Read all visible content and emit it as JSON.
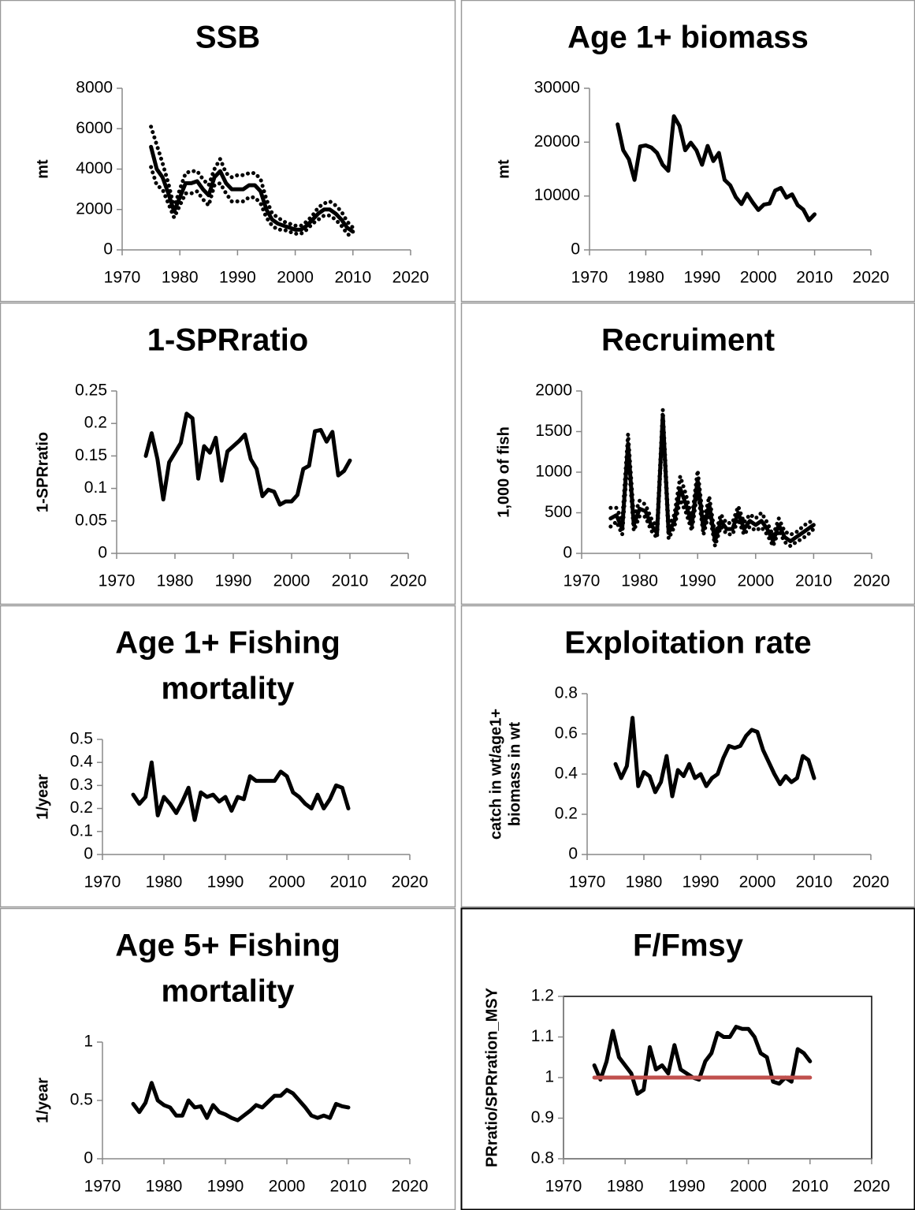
{
  "chart_data": [
    {
      "type": "line",
      "title": "SSB",
      "ylabel": "mt",
      "x": [
        1975,
        1976,
        1977,
        1978,
        1979,
        1980,
        1981,
        1982,
        1983,
        1984,
        1985,
        1986,
        1987,
        1988,
        1989,
        1990,
        1991,
        1992,
        1993,
        1994,
        1995,
        1996,
        1997,
        1998,
        1999,
        2000,
        2001,
        2002,
        2003,
        2004,
        2005,
        2006,
        2007,
        2008,
        2009,
        2010
      ],
      "series": [
        {
          "color": "#000000",
          "values": [
            5100,
            4000,
            3600,
            2800,
            1900,
            2600,
            3300,
            3300,
            3400,
            3000,
            2700,
            3600,
            3900,
            3300,
            3000,
            3000,
            3000,
            3200,
            3200,
            2900,
            2000,
            1500,
            1300,
            1200,
            1100,
            1000,
            1000,
            1200,
            1500,
            1800,
            2000,
            2000,
            1800,
            1500,
            1100,
            900
          ]
        },
        {
          "color": "#000000",
          "dash": "dotted",
          "values": [
            6100,
            5200,
            4300,
            3300,
            2100,
            3000,
            3800,
            3900,
            3900,
            3500,
            3200,
            4000,
            4500,
            3800,
            3600,
            3700,
            3700,
            3800,
            3800,
            3500,
            2500,
            1800,
            1600,
            1400,
            1300,
            1200,
            1200,
            1400,
            1700,
            2100,
            2300,
            2400,
            2200,
            1900,
            1400,
            1100
          ]
        },
        {
          "color": "#000000",
          "dash": "dotted",
          "values": [
            4100,
            3200,
            3000,
            2300,
            1600,
            2200,
            2800,
            2800,
            2900,
            2500,
            2200,
            3200,
            3300,
            2800,
            2400,
            2400,
            2400,
            2600,
            2600,
            2300,
            1600,
            1200,
            1000,
            1000,
            900,
            800,
            800,
            1000,
            1300,
            1500,
            1700,
            1700,
            1500,
            1200,
            800,
            600
          ]
        }
      ],
      "xlim": [
        1970,
        2020
      ],
      "xticks": [
        1970,
        1980,
        1990,
        2000,
        2010,
        2020
      ],
      "ylim": [
        0,
        8000
      ],
      "yticks": [
        0,
        2000,
        4000,
        6000,
        8000
      ]
    },
    {
      "type": "line",
      "title": "Age 1+ biomass",
      "ylabel": "mt",
      "x": [
        1975,
        1976,
        1977,
        1978,
        1979,
        1980,
        1981,
        1982,
        1983,
        1984,
        1985,
        1986,
        1987,
        1988,
        1989,
        1990,
        1991,
        1992,
        1993,
        1994,
        1995,
        1996,
        1997,
        1998,
        1999,
        2000,
        2001,
        2002,
        2003,
        2004,
        2005,
        2006,
        2007,
        2008,
        2009,
        2010
      ],
      "series": [
        {
          "color": "#000000",
          "values": [
            23300,
            18500,
            16800,
            13000,
            19200,
            19400,
            19000,
            18000,
            15800,
            14700,
            24800,
            23000,
            18500,
            19900,
            18500,
            15800,
            19300,
            16500,
            18000,
            13000,
            12000,
            9800,
            8500,
            10400,
            8800,
            7400,
            8400,
            8600,
            11000,
            11500,
            9700,
            10300,
            8300,
            7500,
            5500,
            6600
          ]
        }
      ],
      "xlim": [
        1970,
        2020
      ],
      "xticks": [
        1970,
        1980,
        1990,
        2000,
        2010,
        2020
      ],
      "ylim": [
        0,
        30000
      ],
      "yticks": [
        0,
        10000,
        20000,
        30000
      ]
    },
    {
      "type": "line",
      "title": "1-SPRratio",
      "ylabel": "1-SPRratio",
      "x": [
        1975,
        1976,
        1977,
        1978,
        1979,
        1980,
        1981,
        1982,
        1983,
        1984,
        1985,
        1986,
        1987,
        1988,
        1989,
        1990,
        1991,
        1992,
        1993,
        1994,
        1995,
        1996,
        1997,
        1998,
        1999,
        2000,
        2001,
        2002,
        2003,
        2004,
        2005,
        2006,
        2007,
        2008,
        2009,
        2010
      ],
      "series": [
        {
          "color": "#000000",
          "values": [
            0.15,
            0.185,
            0.145,
            0.083,
            0.14,
            0.155,
            0.17,
            0.215,
            0.208,
            0.115,
            0.165,
            0.155,
            0.178,
            0.112,
            0.157,
            0.165,
            0.173,
            0.183,
            0.145,
            0.13,
            0.088,
            0.098,
            0.095,
            0.075,
            0.08,
            0.08,
            0.09,
            0.13,
            0.135,
            0.188,
            0.19,
            0.172,
            0.187,
            0.12,
            0.127,
            0.143
          ]
        }
      ],
      "xlim": [
        1970,
        2020
      ],
      "xticks": [
        1970,
        1980,
        1990,
        2000,
        2010,
        2020
      ],
      "ylim": [
        0,
        0.25
      ],
      "yticks": [
        0,
        0.05,
        0.1,
        0.15,
        0.2,
        0.25
      ]
    },
    {
      "type": "line",
      "title": "Recruiment",
      "ylabel": "1,000 of fish",
      "x": [
        1975,
        1976,
        1977,
        1978,
        1979,
        1980,
        1981,
        1982,
        1983,
        1984,
        1985,
        1986,
        1987,
        1988,
        1989,
        1990,
        1991,
        1992,
        1993,
        1994,
        1995,
        1996,
        1997,
        1998,
        1999,
        2000,
        2001,
        2002,
        2003,
        2004,
        2005,
        2006,
        2007,
        2008,
        2009,
        2010
      ],
      "series": [
        {
          "color": "#000000",
          "values": [
            430,
            470,
            300,
            1350,
            350,
            550,
            520,
            350,
            250,
            1700,
            250,
            400,
            800,
            600,
            350,
            900,
            300,
            600,
            150,
            400,
            300,
            300,
            500,
            300,
            400,
            350,
            400,
            300,
            150,
            350,
            200,
            150,
            200,
            250,
            300,
            350
          ]
        },
        {
          "color": "#000000",
          "dash": "dotted",
          "values": [
            560,
            560,
            400,
            1470,
            450,
            650,
            600,
            430,
            320,
            1770,
            330,
            480,
            950,
            720,
            430,
            1020,
            380,
            700,
            220,
            480,
            370,
            380,
            580,
            380,
            480,
            430,
            500,
            380,
            220,
            430,
            270,
            230,
            260,
            320,
            380,
            400
          ]
        },
        {
          "color": "#000000",
          "dash": "dotted",
          "values": [
            330,
            390,
            230,
            1230,
            280,
            460,
            450,
            280,
            190,
            1620,
            180,
            330,
            660,
            500,
            280,
            780,
            230,
            510,
            90,
            330,
            240,
            230,
            420,
            230,
            330,
            280,
            320,
            230,
            90,
            280,
            140,
            90,
            140,
            180,
            230,
            300
          ]
        }
      ],
      "xlim": [
        1970,
        2020
      ],
      "xticks": [
        1970,
        1980,
        1990,
        2000,
        2010,
        2020
      ],
      "ylim": [
        0,
        2000
      ],
      "yticks": [
        0,
        500,
        1000,
        1500,
        2000
      ]
    },
    {
      "type": "line",
      "title": [
        "Age 1+ Fishing",
        "mortality"
      ],
      "ylabel": "1/year",
      "x": [
        1975,
        1976,
        1977,
        1978,
        1979,
        1980,
        1981,
        1982,
        1983,
        1984,
        1985,
        1986,
        1987,
        1988,
        1989,
        1990,
        1991,
        1992,
        1993,
        1994,
        1995,
        1996,
        1997,
        1998,
        1999,
        2000,
        2001,
        2002,
        2003,
        2004,
        2005,
        2006,
        2007,
        2008,
        2009,
        2010
      ],
      "series": [
        {
          "color": "#000000",
          "values": [
            0.26,
            0.22,
            0.25,
            0.4,
            0.17,
            0.25,
            0.22,
            0.18,
            0.23,
            0.29,
            0.15,
            0.27,
            0.25,
            0.26,
            0.23,
            0.25,
            0.19,
            0.25,
            0.24,
            0.34,
            0.32,
            0.32,
            0.32,
            0.32,
            0.36,
            0.34,
            0.27,
            0.25,
            0.22,
            0.2,
            0.26,
            0.2,
            0.24,
            0.3,
            0.29,
            0.2
          ]
        }
      ],
      "xlim": [
        1970,
        2020
      ],
      "xticks": [
        1970,
        1980,
        1990,
        2000,
        2010,
        2020
      ],
      "ylim": [
        0,
        0.5
      ],
      "yticks": [
        0,
        0.1,
        0.2,
        0.3,
        0.4,
        0.5
      ]
    },
    {
      "type": "line",
      "title": "Exploitation rate",
      "ylabel": [
        "catch in wt/age1+",
        "biomass in wt"
      ],
      "x": [
        1975,
        1976,
        1977,
        1978,
        1979,
        1980,
        1981,
        1982,
        1983,
        1984,
        1985,
        1986,
        1987,
        1988,
        1989,
        1990,
        1991,
        1992,
        1993,
        1994,
        1995,
        1996,
        1997,
        1998,
        1999,
        2000,
        2001,
        2002,
        2003,
        2004,
        2005,
        2006,
        2007,
        2008,
        2009,
        2010
      ],
      "series": [
        {
          "color": "#000000",
          "values": [
            0.45,
            0.38,
            0.44,
            0.68,
            0.34,
            0.41,
            0.39,
            0.31,
            0.36,
            0.49,
            0.29,
            0.42,
            0.39,
            0.45,
            0.38,
            0.4,
            0.34,
            0.38,
            0.4,
            0.48,
            0.54,
            0.53,
            0.54,
            0.59,
            0.62,
            0.61,
            0.52,
            0.46,
            0.4,
            0.35,
            0.39,
            0.36,
            0.38,
            0.49,
            0.47,
            0.38
          ]
        }
      ],
      "xlim": [
        1970,
        2020
      ],
      "xticks": [
        1970,
        1980,
        1990,
        2000,
        2010,
        2020
      ],
      "ylim": [
        0,
        0.8
      ],
      "yticks": [
        0,
        0.2,
        0.4,
        0.6,
        0.8
      ]
    },
    {
      "type": "line",
      "title": [
        "Age 5+ Fishing",
        "mortality"
      ],
      "ylabel": "1/year",
      "x": [
        1975,
        1976,
        1977,
        1978,
        1979,
        1980,
        1981,
        1982,
        1983,
        1984,
        1985,
        1986,
        1987,
        1988,
        1989,
        1990,
        1991,
        1992,
        1993,
        1994,
        1995,
        1996,
        1997,
        1998,
        1999,
        2000,
        2001,
        2002,
        2003,
        2004,
        2005,
        2006,
        2007,
        2008,
        2009,
        2010
      ],
      "series": [
        {
          "color": "#000000",
          "values": [
            0.47,
            0.4,
            0.48,
            0.65,
            0.5,
            0.46,
            0.44,
            0.37,
            0.37,
            0.5,
            0.44,
            0.45,
            0.35,
            0.46,
            0.4,
            0.38,
            0.35,
            0.33,
            0.37,
            0.41,
            0.46,
            0.44,
            0.49,
            0.54,
            0.54,
            0.59,
            0.56,
            0.5,
            0.44,
            0.37,
            0.35,
            0.37,
            0.35,
            0.47,
            0.45,
            0.44
          ]
        }
      ],
      "xlim": [
        1970,
        2020
      ],
      "xticks": [
        1970,
        1980,
        1990,
        2000,
        2010,
        2020
      ],
      "ylim": [
        0,
        1
      ],
      "yticks": [
        0,
        0.5,
        1
      ]
    },
    {
      "type": "line",
      "title": "F/Fmsy",
      "ylabel": "PRratio/SPRration_MSY",
      "frame": true,
      "x": [
        1975,
        1976,
        1977,
        1978,
        1979,
        1980,
        1981,
        1982,
        1983,
        1984,
        1985,
        1986,
        1987,
        1988,
        1989,
        1990,
        1991,
        1992,
        1993,
        1994,
        1995,
        1996,
        1997,
        1998,
        1999,
        2000,
        2001,
        2002,
        2003,
        2004,
        2005,
        2006,
        2007,
        2008,
        2009,
        2010
      ],
      "series": [
        {
          "color": "#000000",
          "values": [
            1.03,
            0.995,
            1.04,
            1.115,
            1.05,
            1.03,
            1.01,
            0.96,
            0.97,
            1.075,
            1.02,
            1.03,
            1.01,
            1.08,
            1.02,
            1.01,
            1.0,
            0.995,
            1.04,
            1.06,
            1.11,
            1.1,
            1.1,
            1.125,
            1.12,
            1.12,
            1.1,
            1.06,
            1.05,
            0.99,
            0.985,
            1.0,
            0.99,
            1.07,
            1.06,
            1.04
          ]
        },
        {
          "color": "#c0504d",
          "values": [
            1,
            1,
            1,
            1,
            1,
            1,
            1,
            1,
            1,
            1,
            1,
            1,
            1,
            1,
            1,
            1,
            1,
            1,
            1,
            1,
            1,
            1,
            1,
            1,
            1,
            1,
            1,
            1,
            1,
            1,
            1,
            1,
            1,
            1,
            1,
            1
          ]
        }
      ],
      "xlim": [
        1970,
        2020
      ],
      "xticks": [
        1970,
        1980,
        1990,
        2000,
        2010,
        2020
      ],
      "ylim": [
        0.8,
        1.2
      ],
      "yticks": [
        0.8,
        0.9,
        1,
        1.1,
        1.2
      ]
    }
  ]
}
